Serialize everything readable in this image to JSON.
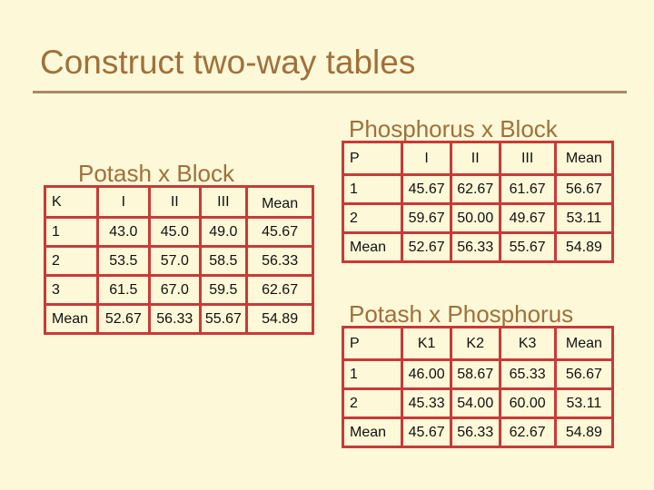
{
  "slide": {
    "title": "Construct two-way tables"
  },
  "table_potash_block": {
    "caption": "Potash x Block",
    "header": [
      "K",
      "I",
      "II",
      "III",
      "Mean"
    ],
    "rows": [
      {
        "label": "1",
        "values": [
          "43.0",
          "45.0",
          "49.0"
        ],
        "mean": "45.67"
      },
      {
        "label": "2",
        "values": [
          "53.5",
          "57.0",
          "58.5"
        ],
        "mean": "56.33"
      },
      {
        "label": "3",
        "values": [
          "61.5",
          "67.0",
          "59.5"
        ],
        "mean": "62.67"
      },
      {
        "label": "Mean",
        "values": [
          "52.67",
          "56.33",
          "55.67"
        ],
        "mean": "54.89"
      }
    ]
  },
  "table_phosphorus_block": {
    "caption": "Phosphorus x Block",
    "header": [
      "P",
      "I",
      "II",
      "III",
      "Mean"
    ],
    "rows": [
      {
        "label": "1",
        "values": [
          "45.67",
          "62.67",
          "61.67"
        ],
        "mean": "56.67"
      },
      {
        "label": "2",
        "values": [
          "59.67",
          "50.00",
          "49.67"
        ],
        "mean": "53.11"
      },
      {
        "label": "Mean",
        "values": [
          "52.67",
          "56.33",
          "55.67"
        ],
        "mean": "54.89"
      }
    ]
  },
  "table_potash_phosphorus": {
    "caption": "Potash x Phosphorus",
    "header": [
      "P",
      "K1",
      "K2",
      "K3",
      "Mean"
    ],
    "rows": [
      {
        "label": "1",
        "values": [
          "46.00",
          "58.67",
          "65.33"
        ],
        "mean": "56.67"
      },
      {
        "label": "2",
        "values": [
          "45.33",
          "54.00",
          "60.00"
        ],
        "mean": "53.11"
      },
      {
        "label": "Mean",
        "values": [
          "45.67",
          "56.33",
          "62.67"
        ],
        "mean": "54.89"
      }
    ]
  }
}
